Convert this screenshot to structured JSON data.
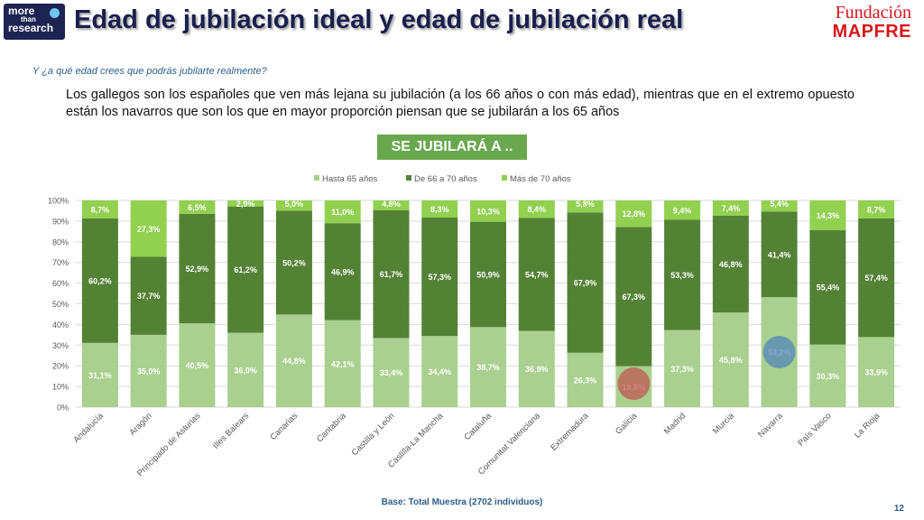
{
  "header": {
    "title": "Edad de jubilación ideal y edad de jubilación real",
    "logo_left": {
      "line1": "more",
      "line2": "than",
      "line3": "research"
    },
    "logo_right": {
      "line1": "Fundación",
      "line2": "MAPFRE"
    }
  },
  "question": "Y ¿a qué edad crees que podrás jubilarte realmente?",
  "intro": "Los gallegos son los españoles que ven más lejana su jubilación (a los 66 años o con más edad), mientras que en el extremo opuesto están los navarros que son los que en mayor proporción piensan que se jubilarán a los 65 años",
  "banner": "SE JUBILARÁ A ..",
  "footer": {
    "base": "Base: Total Muestra (2702 individuos)",
    "page": "12"
  },
  "colors": {
    "hasta65": "#a9d08e",
    "de66a70": "#548235",
    "mas70": "#92d050",
    "highlight_red": "#c0504d",
    "highlight_blue": "#4f81bd"
  },
  "chart_data": {
    "type": "bar",
    "stacked": true,
    "categories": [
      "Andalucía",
      "Aragón",
      "Principado de Asturias",
      "Illes Balears",
      "Canarias",
      "Cantabria",
      "Castilla y León",
      "Castilla-La Mancha",
      "Cataluña",
      "Comunitat Valenciana",
      "Extremadura",
      "Galicia",
      "Madrid",
      "Murcia",
      "Navarra",
      "País Vasco",
      "La Rioja"
    ],
    "series": [
      {
        "name": "Hasta 65 años",
        "values": [
          31.1,
          35.0,
          40.5,
          36.0,
          44.8,
          42.1,
          33.4,
          34.4,
          38.7,
          36.9,
          26.3,
          19.8,
          37.3,
          45.8,
          53.2,
          30.3,
          33.9
        ],
        "labels": [
          "31,1%",
          "35,0%",
          "40,5%",
          "36,0%",
          "44,8%",
          "42,1%",
          "33,4%",
          "34,4%",
          "38,7%",
          "36,9%",
          "26,3%",
          "19,8%",
          "37,3%",
          "45,8%",
          "53,2%",
          "30,3%",
          "33,9%"
        ]
      },
      {
        "name": "De 66 a 70 años",
        "values": [
          60.2,
          37.7,
          52.9,
          61.2,
          50.2,
          46.9,
          61.7,
          57.3,
          50.9,
          54.7,
          67.9,
          67.3,
          53.3,
          46.8,
          41.4,
          55.4,
          57.4
        ],
        "labels": [
          "60,2%",
          "37,7%",
          "52,9%",
          "61,2%",
          "50,2%",
          "46,9%",
          "61,7%",
          "57,3%",
          "50,9%",
          "54,7%",
          "67,9%",
          "67,3%",
          "53,3%",
          "46,8%",
          "41,4%",
          "55,4%",
          "57,4%"
        ]
      },
      {
        "name": "Más de 70 años",
        "values": [
          8.7,
          27.3,
          6.5,
          2.9,
          5.0,
          11.0,
          4.8,
          8.3,
          10.3,
          8.4,
          5.8,
          12.8,
          9.4,
          7.4,
          5.4,
          14.3,
          8.7
        ],
        "labels": [
          "8,7%",
          "27,3%",
          "6,5%",
          "2,9%",
          "5,0%",
          "11,0%",
          "4,8%",
          "8,3%",
          "10,3%",
          "8,4%",
          "5,8%",
          "12,8%",
          "9,4%",
          "7,4%",
          "5,4%",
          "14,3%",
          "8,7%"
        ]
      }
    ],
    "yticks": [
      "0%",
      "10%",
      "20%",
      "30%",
      "40%",
      "50%",
      "60%",
      "70%",
      "80%",
      "90%",
      "100%"
    ],
    "ylim": [
      0,
      100
    ],
    "grid": true,
    "legend_position": "top",
    "highlights": [
      {
        "category": "Galicia",
        "series": "Hasta 65 años",
        "color": "red"
      },
      {
        "category": "Navarra",
        "series": "Hasta 65 años",
        "color": "blue"
      }
    ]
  }
}
